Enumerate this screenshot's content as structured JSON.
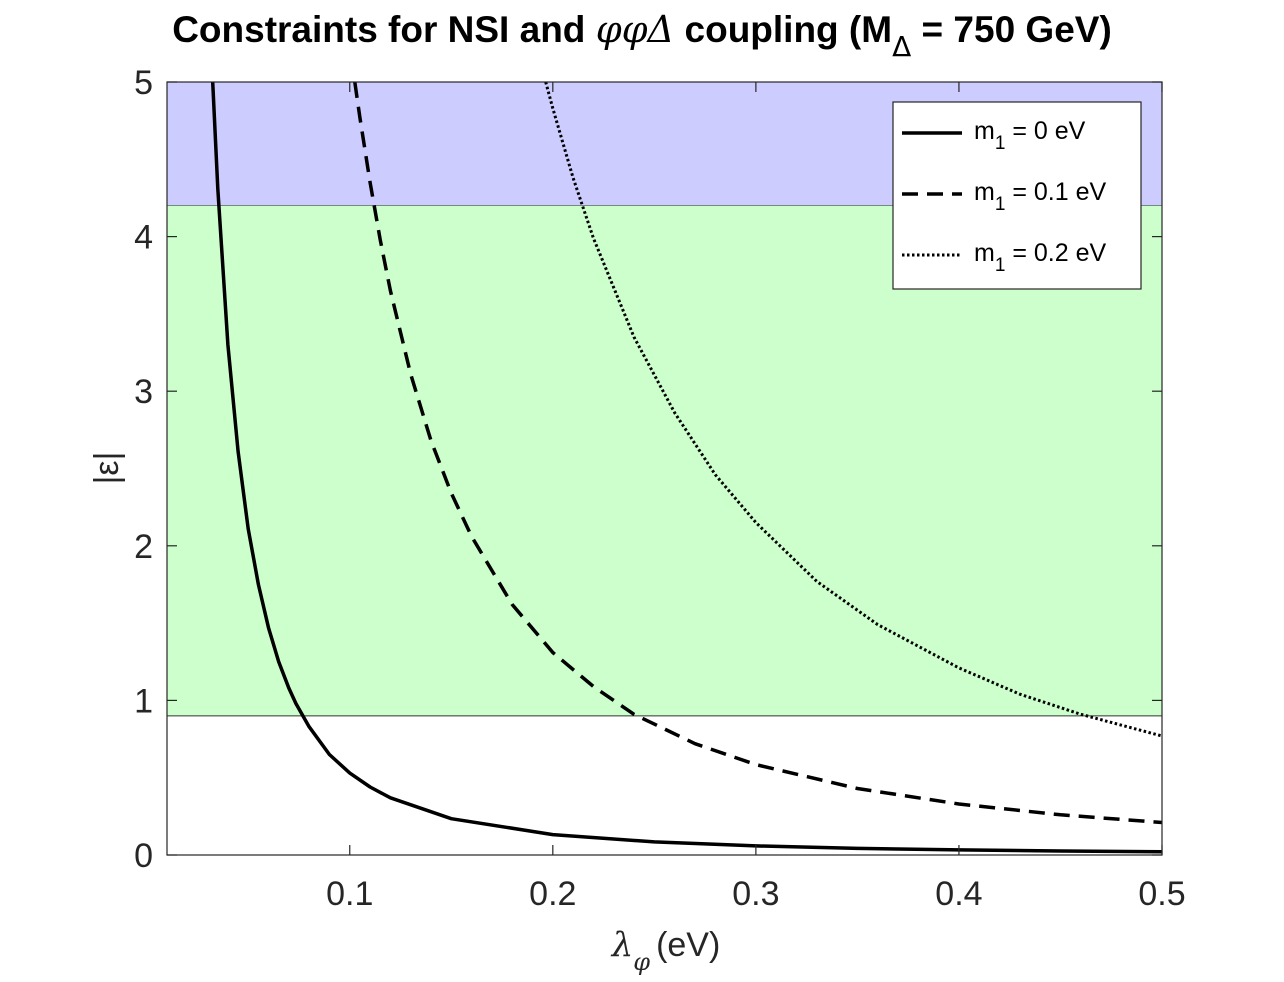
{
  "chart_data": {
    "type": "line",
    "title": {
      "part1": "Constraints for NSI and ",
      "symbols": "φφΔ",
      "part2": " coupling (M",
      "sub": "Δ",
      "part3": " = 750 GeV)"
    },
    "xlabel": {
      "main": "λ",
      "sub": "φ",
      "unit": "(eV)"
    },
    "ylabel": "|ε|",
    "xlim": [
      0.01,
      0.5
    ],
    "ylim": [
      0,
      5
    ],
    "xticks": [
      0.1,
      0.2,
      0.3,
      0.4,
      0.5
    ],
    "xtick_labels": [
      "0.1",
      "0.2",
      "0.3",
      "0.4",
      "0.5"
    ],
    "yticks": [
      0,
      1,
      2,
      3,
      4,
      5
    ],
    "ytick_labels": [
      "0",
      "1",
      "2",
      "3",
      "4",
      "5"
    ],
    "grid": false,
    "legend_placement": "top-right",
    "bands": [
      {
        "y_from": 4.2,
        "y_to": 5,
        "color": "#ccccff"
      },
      {
        "y_from": 0.9,
        "y_to": 4.2,
        "color": "#ccffcc"
      }
    ],
    "series": [
      {
        "name": "m",
        "name_sub": "1",
        "name_rest": " = 0 eV",
        "style": "solid",
        "color": "#000000",
        "x": [
          0.0325,
          0.035,
          0.04,
          0.045,
          0.05,
          0.055,
          0.06,
          0.065,
          0.07,
          0.0735,
          0.08,
          0.09,
          0.1,
          0.11,
          0.12,
          0.15,
          0.2,
          0.25,
          0.3,
          0.35,
          0.4,
          0.45,
          0.5
        ],
        "y": [
          5.0,
          4.31,
          3.3,
          2.61,
          2.11,
          1.75,
          1.47,
          1.25,
          1.08,
          0.98,
          0.83,
          0.65,
          0.53,
          0.44,
          0.37,
          0.235,
          0.132,
          0.085,
          0.059,
          0.043,
          0.033,
          0.026,
          0.021
        ]
      },
      {
        "name": "m",
        "name_sub": "1",
        "name_rest": " = 0.1 eV",
        "style": "dashed",
        "color": "#000000",
        "x": [
          0.1025,
          0.105,
          0.11,
          0.115,
          0.12,
          0.13,
          0.14,
          0.15,
          0.16,
          0.18,
          0.2,
          0.22,
          0.24,
          0.27,
          0.3,
          0.35,
          0.4,
          0.45,
          0.5
        ],
        "y": [
          5.0,
          4.77,
          4.35,
          3.98,
          3.65,
          3.11,
          2.68,
          2.34,
          2.06,
          1.62,
          1.31,
          1.09,
          0.91,
          0.72,
          0.585,
          0.43,
          0.33,
          0.26,
          0.21
        ]
      },
      {
        "name": "m",
        "name_sub": "1",
        "name_rest": " = 0.2 eV",
        "style": "dotted",
        "color": "#000000",
        "x": [
          0.1965,
          0.2,
          0.21,
          0.22,
          0.24,
          0.26,
          0.28,
          0.3,
          0.33,
          0.36,
          0.4,
          0.43,
          0.46,
          0.5
        ],
        "y": [
          5.0,
          4.83,
          4.38,
          3.99,
          3.35,
          2.86,
          2.46,
          2.15,
          1.77,
          1.49,
          1.21,
          1.04,
          0.91,
          0.77
        ]
      }
    ]
  }
}
